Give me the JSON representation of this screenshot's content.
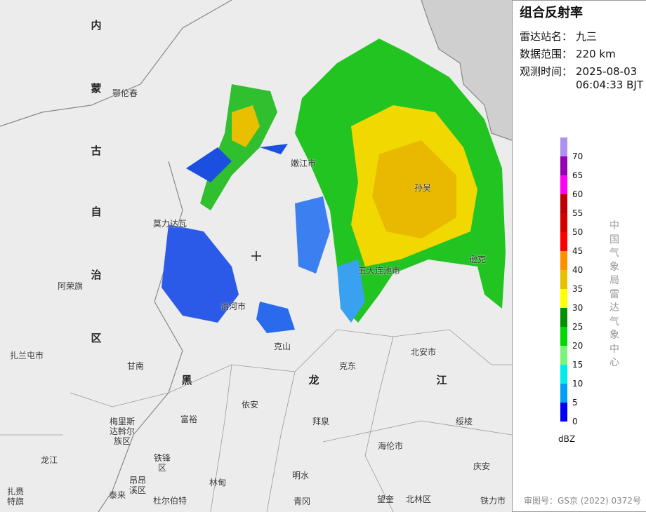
{
  "panel": {
    "title": "组合反射率",
    "station_label": "雷达站名：",
    "station": "九三",
    "range_label": "数据范围：",
    "range": "220 km",
    "time_label": "观测时间：",
    "time": "2025-08-03\n06:04:33 BJT",
    "agency": "中国气象局雷达气象中心",
    "approval": "审图号：GS京 (2022) 0372号"
  },
  "legend": {
    "unit": "dBZ",
    "ticks": [
      0,
      5,
      10,
      15,
      20,
      25,
      30,
      35,
      40,
      45,
      50,
      55,
      60,
      65,
      70
    ],
    "colors": [
      "#0000f6",
      "#01a0f6",
      "#00ecec",
      "#7af37a",
      "#01d801",
      "#019001",
      "#ffff00",
      "#e7c000",
      "#ff9000",
      "#ff0000",
      "#d60000",
      "#c00000",
      "#ff00f0",
      "#9600b4",
      "#ad90f0"
    ]
  },
  "map": {
    "labels": [
      "内",
      "蒙",
      "古",
      "自",
      "治",
      "区",
      "鄂伦春",
      "嫩江市",
      "孙吴",
      "莫力达瓦",
      "五大连池市",
      "逊克",
      "阿荣旗",
      "讷河市",
      "克山",
      "扎兰屯市",
      "甘南",
      "克东",
      "北安市",
      "黑",
      "龙",
      "江",
      "依安",
      "富裕",
      "拜泉",
      "绥棱",
      "梅里斯\n达斡尔\n族区",
      "海伦市",
      "龙江",
      "铁锋\n区",
      "昂昂\n溪区",
      "明水",
      "林甸",
      "庆安",
      "扎赉\n特旗",
      "泰来",
      "杜尔伯特",
      "青冈",
      "望奎",
      "北林区",
      "铁力市"
    ]
  }
}
